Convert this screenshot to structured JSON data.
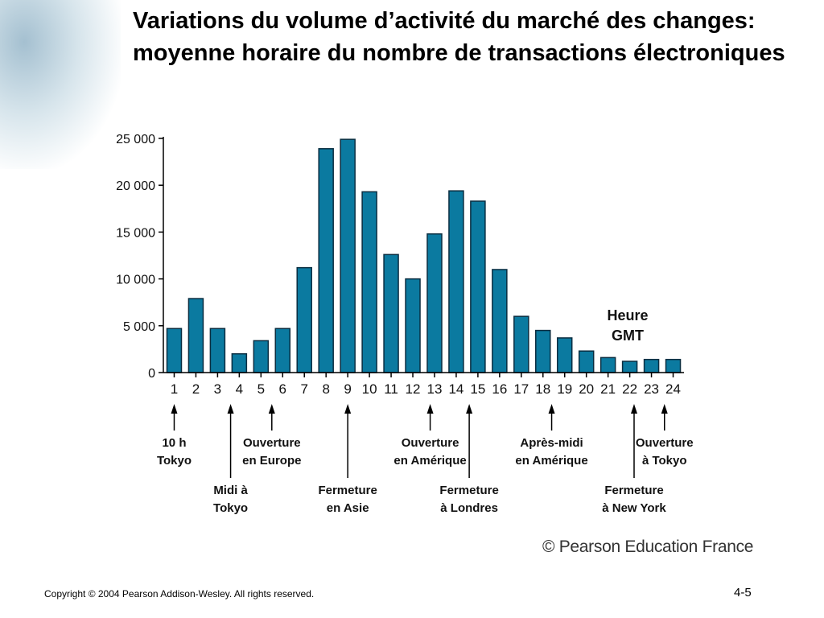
{
  "slide": {
    "title": "Variations du volume d’activité du marché des changes: moyenne horaire du nombre de transactions électroniques",
    "watermark": "© Pearson Education France",
    "copyright": "Copyright © 2004 Pearson Addison-Wesley. All rights reserved.",
    "slide_number": "4-5"
  },
  "colors": {
    "bar_fill": "#0b7aa0",
    "bar_stroke": "#0a2d40",
    "axis": "#000000"
  },
  "chart_data": {
    "type": "bar",
    "title": "",
    "xlabel": "Heure GMT",
    "ylabel": "",
    "ylim": [
      0,
      25000
    ],
    "yticks": [
      0,
      5000,
      10000,
      15000,
      20000,
      25000
    ],
    "ytick_labels": [
      "0",
      "5 000",
      "10 000",
      "15 000",
      "20 000",
      "25 000"
    ],
    "grid": false,
    "categories": [
      "1",
      "2",
      "3",
      "4",
      "5",
      "6",
      "7",
      "8",
      "9",
      "10",
      "11",
      "12",
      "13",
      "14",
      "15",
      "16",
      "17",
      "18",
      "19",
      "20",
      "21",
      "22",
      "23",
      "24"
    ],
    "values": [
      4700,
      7900,
      4700,
      2000,
      3400,
      4700,
      11200,
      23900,
      24900,
      19300,
      12600,
      10000,
      14800,
      19400,
      18300,
      11000,
      6000,
      4500,
      3700,
      2300,
      1600,
      1200,
      1400,
      1400
    ],
    "annotations": [
      {
        "hour": 1,
        "lines": [
          "10 h",
          "Tokyo"
        ],
        "row": 1
      },
      {
        "hour": 3.6,
        "lines": [
          "Midi à",
          "Tokyo"
        ],
        "row": 2
      },
      {
        "hour": 5.5,
        "lines": [
          "Ouverture",
          "en Europe"
        ],
        "row": 1
      },
      {
        "hour": 9,
        "lines": [
          "Fermeture",
          "en Asie"
        ],
        "row": 2
      },
      {
        "hour": 12.8,
        "lines": [
          "Ouverture",
          "en Amérique"
        ],
        "row": 1
      },
      {
        "hour": 14.6,
        "lines": [
          "Fermeture",
          "à Londres"
        ],
        "row": 2
      },
      {
        "hour": 18.4,
        "lines": [
          "Après-midi",
          "en Amérique"
        ],
        "row": 1
      },
      {
        "hour": 22.2,
        "lines": [
          "Fermeture",
          "à New York"
        ],
        "row": 2
      },
      {
        "hour": 23.6,
        "lines": [
          "Ouverture",
          "à Tokyo"
        ],
        "row": 1
      }
    ]
  }
}
